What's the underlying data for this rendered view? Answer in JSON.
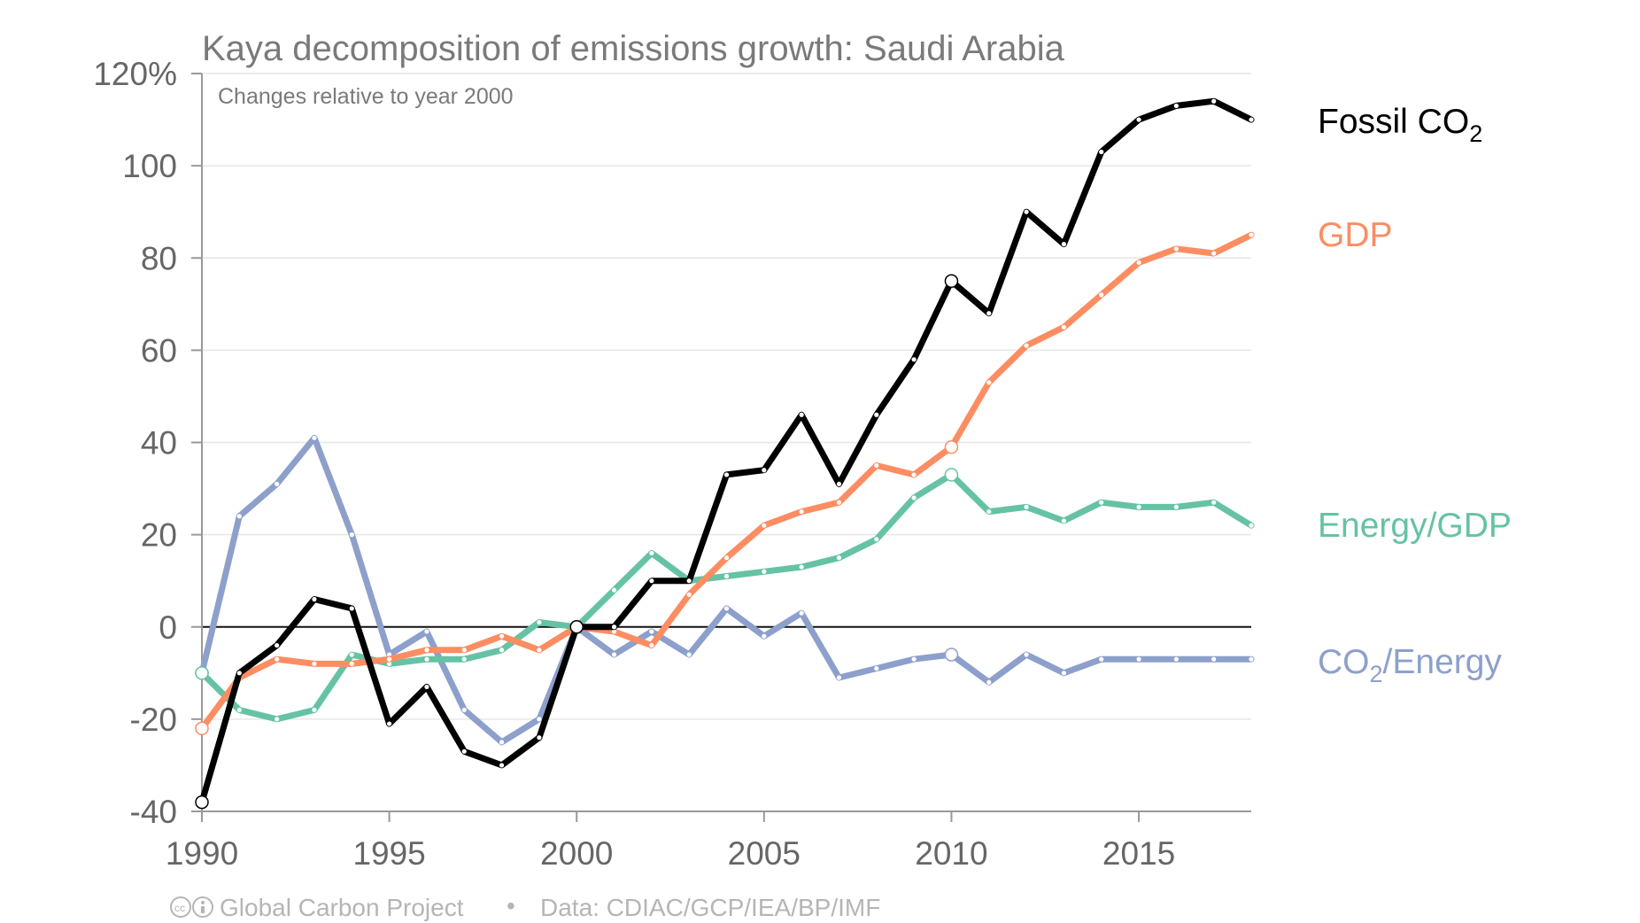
{
  "chart_data": {
    "type": "line",
    "title": "Kaya decomposition of emissions growth: Saudi Arabia",
    "subtitle": "Changes relative to year 2000",
    "y_unit_suffix": "%",
    "ylim": [
      -40,
      120
    ],
    "yticks": [
      -40,
      -20,
      0,
      20,
      40,
      60,
      80,
      100,
      120
    ],
    "ytick_labels": [
      "-40",
      "-20",
      "0",
      "20",
      "40",
      "60",
      "80",
      "100",
      "120%"
    ],
    "xlim": [
      1990,
      2018
    ],
    "xticks": [
      1990,
      1995,
      2000,
      2005,
      2010,
      2015
    ],
    "grid": true,
    "x": [
      1990,
      1991,
      1992,
      1993,
      1994,
      1995,
      1996,
      1997,
      1998,
      1999,
      2000,
      2001,
      2002,
      2003,
      2004,
      2005,
      2006,
      2007,
      2008,
      2009,
      2010,
      2011,
      2012,
      2013,
      2014,
      2015,
      2016,
      2017,
      2018
    ],
    "highlight_years": [
      1990,
      2000,
      2010
    ],
    "series": [
      {
        "name": "CO2/Energy",
        "legend_main": "CO",
        "legend_sub": "2",
        "legend_tail": "/Energy",
        "color": "#8da0cb",
        "values": [
          -10,
          24,
          31,
          41,
          20,
          -6,
          -1,
          -18,
          -25,
          -20,
          0,
          -6,
          -1,
          -6,
          4,
          -2,
          3,
          -11,
          -9,
          -7,
          -6,
          -12,
          -6,
          -10,
          -7,
          -7,
          -7,
          -7,
          -7
        ]
      },
      {
        "name": "Energy/GDP",
        "legend_main": "Energy/GDP",
        "legend_sub": "",
        "legend_tail": "",
        "color": "#66c2a5",
        "values": [
          -10,
          -18,
          -20,
          -18,
          -6,
          -8,
          -7,
          -7,
          -5,
          1,
          0,
          8,
          16,
          10,
          11,
          12,
          13,
          15,
          19,
          28,
          33,
          25,
          26,
          23,
          27,
          26,
          26,
          27,
          22
        ]
      },
      {
        "name": "GDP",
        "legend_main": "GDP",
        "legend_sub": "",
        "legend_tail": "",
        "color": "#fc8d62",
        "values": [
          -22,
          -11,
          -7,
          -8,
          -8,
          -7,
          -5,
          -5,
          -2,
          -5,
          0,
          -1,
          -4,
          7,
          15,
          22,
          25,
          27,
          35,
          33,
          39,
          53,
          61,
          65,
          72,
          79,
          82,
          81,
          85
        ]
      },
      {
        "name": "Fossil CO2",
        "legend_main": "Fossil CO",
        "legend_sub": "2",
        "legend_tail": "",
        "color": "#000000",
        "values": [
          -38,
          -10,
          -4,
          6,
          4,
          -21,
          -13,
          -27,
          -30,
          -24,
          0,
          0,
          10,
          10,
          33,
          34,
          46,
          31,
          46,
          58,
          75,
          68,
          90,
          83,
          103,
          110,
          113,
          114,
          110
        ]
      }
    ]
  },
  "footer": {
    "cc_icon": "cc-by-icon",
    "org": "Global Carbon Project",
    "separator": "•",
    "data_sources": "Data: CDIAC/GCP/IEA/BP/IMF"
  }
}
